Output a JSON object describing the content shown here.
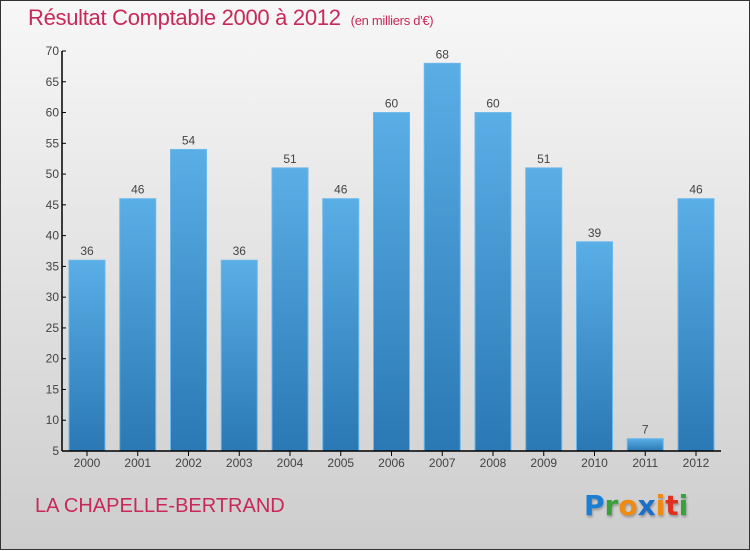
{
  "chart_data": {
    "type": "bar",
    "title": "Résultat Comptable 2000 à 2012",
    "subtitle": "(en milliers d'€)",
    "categories": [
      "2000",
      "2001",
      "2002",
      "2003",
      "2004",
      "2005",
      "2006",
      "2007",
      "2008",
      "2009",
      "2010",
      "2011",
      "2012"
    ],
    "values": [
      36,
      46,
      54,
      36,
      51,
      46,
      60,
      68,
      60,
      51,
      39,
      7,
      46
    ],
    "ylim": [
      5,
      70
    ],
    "yticks": [
      5,
      10,
      15,
      20,
      25,
      30,
      35,
      40,
      45,
      50,
      55,
      60,
      65,
      70
    ],
    "xlabel": "",
    "ylabel": "",
    "grid": false,
    "bar_color_top": "#5aaee6",
    "bar_color_bottom": "#2a78b4"
  },
  "footer": {
    "town": "LA CHAPELLE-BERTRAND",
    "logo": "Proxiti"
  },
  "colors": {
    "title": "#c8285a"
  }
}
